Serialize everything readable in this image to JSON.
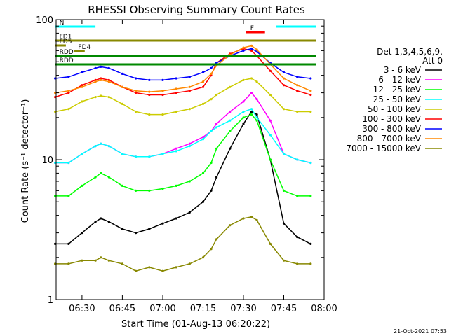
{
  "chart_data": {
    "type": "line",
    "title": "RHESSI Observing Summary Count Rates",
    "xlabel": "Start Time (01-Aug-13 06:20:22)",
    "ylabel": "Count Rate (s⁻¹ detector⁻¹)",
    "xscale": "time_minutes",
    "yscale": "log",
    "xlim": [
      "06:20:22",
      "08:00:00"
    ],
    "ylim": [
      1,
      100
    ],
    "x_ticks": [
      "06:30",
      "06:45",
      "07:00",
      "07:15",
      "07:30",
      "07:45",
      "08:00"
    ],
    "y_ticks": [
      "1",
      "10",
      "100"
    ],
    "grid": false,
    "legend": {
      "title_lines": [
        "Det 1,3,4,5,6,9,",
        "Att 0"
      ],
      "placement": "right"
    },
    "x": [
      "06:20",
      "06:25",
      "06:30",
      "06:35",
      "06:37",
      "06:40",
      "06:45",
      "06:50",
      "06:55",
      "07:00",
      "07:05",
      "07:10",
      "07:15",
      "07:18",
      "07:20",
      "07:25",
      "07:30",
      "07:33",
      "07:35",
      "07:40",
      "07:45",
      "07:50",
      "07:55"
    ],
    "series": [
      {
        "name": "3 - 6 keV",
        "color": "#000000",
        "values": [
          2.5,
          2.5,
          3.0,
          3.6,
          3.8,
          3.6,
          3.2,
          3.0,
          3.2,
          3.5,
          3.8,
          4.2,
          5.0,
          6.0,
          7.5,
          12.0,
          18.0,
          22.0,
          21.0,
          10.0,
          3.5,
          2.8,
          2.5
        ]
      },
      {
        "name": "6 - 12 keV",
        "color": "#ff00ff",
        "values": [
          9.5,
          9.5,
          11.0,
          12.5,
          13.0,
          12.5,
          11.0,
          10.5,
          10.5,
          11.0,
          12.0,
          13.0,
          14.5,
          16.0,
          18.0,
          22.0,
          26.0,
          30.0,
          27.0,
          19.0,
          11.0,
          10.0,
          9.5
        ]
      },
      {
        "name": "12 - 25 keV",
        "color": "#00ff00",
        "values": [
          5.5,
          5.5,
          6.5,
          7.5,
          8.0,
          7.5,
          6.5,
          6.0,
          6.0,
          6.2,
          6.5,
          7.0,
          8.0,
          9.5,
          12.0,
          16.0,
          20.0,
          21.0,
          19.0,
          10.0,
          6.0,
          5.5,
          5.5
        ]
      },
      {
        "name": "25 - 50 keV",
        "color": "#00ffff",
        "values": [
          9.5,
          9.5,
          11.0,
          12.5,
          13.0,
          12.5,
          11.0,
          10.5,
          10.5,
          11.0,
          11.5,
          12.5,
          14.0,
          16.0,
          17.0,
          19.0,
          22.0,
          23.0,
          20.0,
          15.0,
          11.0,
          10.0,
          9.5
        ]
      },
      {
        "name": "50 - 100 keV",
        "color": "#cccc00",
        "values": [
          22.0,
          23.0,
          26.0,
          28.0,
          28.5,
          28.0,
          25.0,
          22.0,
          21.0,
          21.0,
          22.0,
          23.0,
          25.0,
          27.0,
          29.0,
          33.0,
          37.0,
          38.0,
          36.0,
          29.0,
          23.0,
          22.0,
          22.0
        ]
      },
      {
        "name": "100 - 300 keV",
        "color": "#ff0000",
        "values": [
          28.0,
          30.0,
          34.0,
          37.0,
          38.0,
          37.0,
          33.0,
          30.0,
          29.0,
          29.0,
          30.0,
          31.0,
          33.0,
          40.0,
          49.0,
          57.0,
          62.0,
          60.0,
          55.0,
          43.0,
          34.0,
          31.0,
          29.0
        ]
      },
      {
        "name": "300 - 800 keV",
        "color": "#0000ff",
        "values": [
          38.0,
          39.0,
          42.0,
          45.0,
          46.0,
          45.0,
          41.0,
          38.0,
          37.0,
          37.0,
          38.0,
          39.0,
          42.0,
          45.0,
          49.0,
          55.0,
          60.0,
          62.0,
          59.0,
          49.0,
          42.0,
          39.0,
          38.0
        ]
      },
      {
        "name": "800 - 7000 keV",
        "color": "#ff8800",
        "values": [
          30.0,
          31.0,
          33.0,
          36.0,
          37.0,
          36.0,
          33.0,
          31.0,
          30.5,
          31.0,
          32.0,
          33.0,
          36.0,
          41.0,
          47.0,
          56.0,
          63.0,
          65.0,
          61.0,
          48.0,
          38.0,
          34.0,
          31.0
        ]
      },
      {
        "name": "7000 - 15000 keV",
        "color": "#888800",
        "values": [
          1.8,
          1.8,
          1.9,
          1.9,
          2.0,
          1.9,
          1.8,
          1.6,
          1.7,
          1.6,
          1.7,
          1.8,
          2.0,
          2.3,
          2.7,
          3.4,
          3.8,
          3.9,
          3.7,
          2.5,
          1.9,
          1.8,
          1.8
        ]
      }
    ],
    "annotations": [
      {
        "label": "N",
        "color": "#00ffff",
        "from": "06:20",
        "to": "06:35"
      },
      {
        "label": "",
        "color": "#00ffff",
        "from": "07:42",
        "to": "07:57"
      },
      {
        "label": "F",
        "color": "#ff0000",
        "from": "07:31",
        "to": "07:38"
      },
      {
        "label": "FD1",
        "color": "#888800",
        "from": "06:20",
        "to": "07:57"
      },
      {
        "label": "FD5",
        "color": "#888800",
        "from": "06:20",
        "to": "06:24"
      },
      {
        "label": "FD4",
        "color": "#888800",
        "from": "06:27",
        "to": "06:31"
      },
      {
        "label": "RDD",
        "color": "#008800",
        "from": "06:20",
        "to": "07:57"
      },
      {
        "label": "RDD",
        "color": "#008800",
        "from": "06:20",
        "to": "07:57"
      }
    ],
    "timestamp": "21-Oct-2021 07:53"
  }
}
